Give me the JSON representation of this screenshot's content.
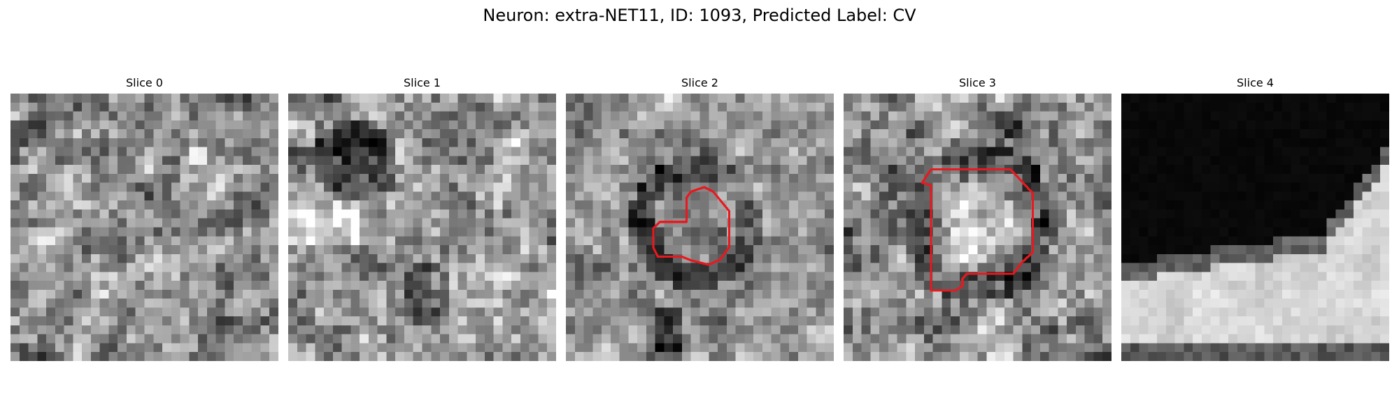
{
  "figure": {
    "suptitle": "Neuron: extra-NET11, ID: 1093, Predicted Label: CV",
    "contour_color": "#e8191f",
    "colormap": "gray",
    "panels": [
      {
        "title": "Slice 0",
        "has_contour": false
      },
      {
        "title": "Slice 1",
        "has_contour": false
      },
      {
        "title": "Slice 2",
        "has_contour": true
      },
      {
        "title": "Slice 3",
        "has_contour": true
      },
      {
        "title": "Slice 4",
        "has_contour": false
      }
    ]
  }
}
